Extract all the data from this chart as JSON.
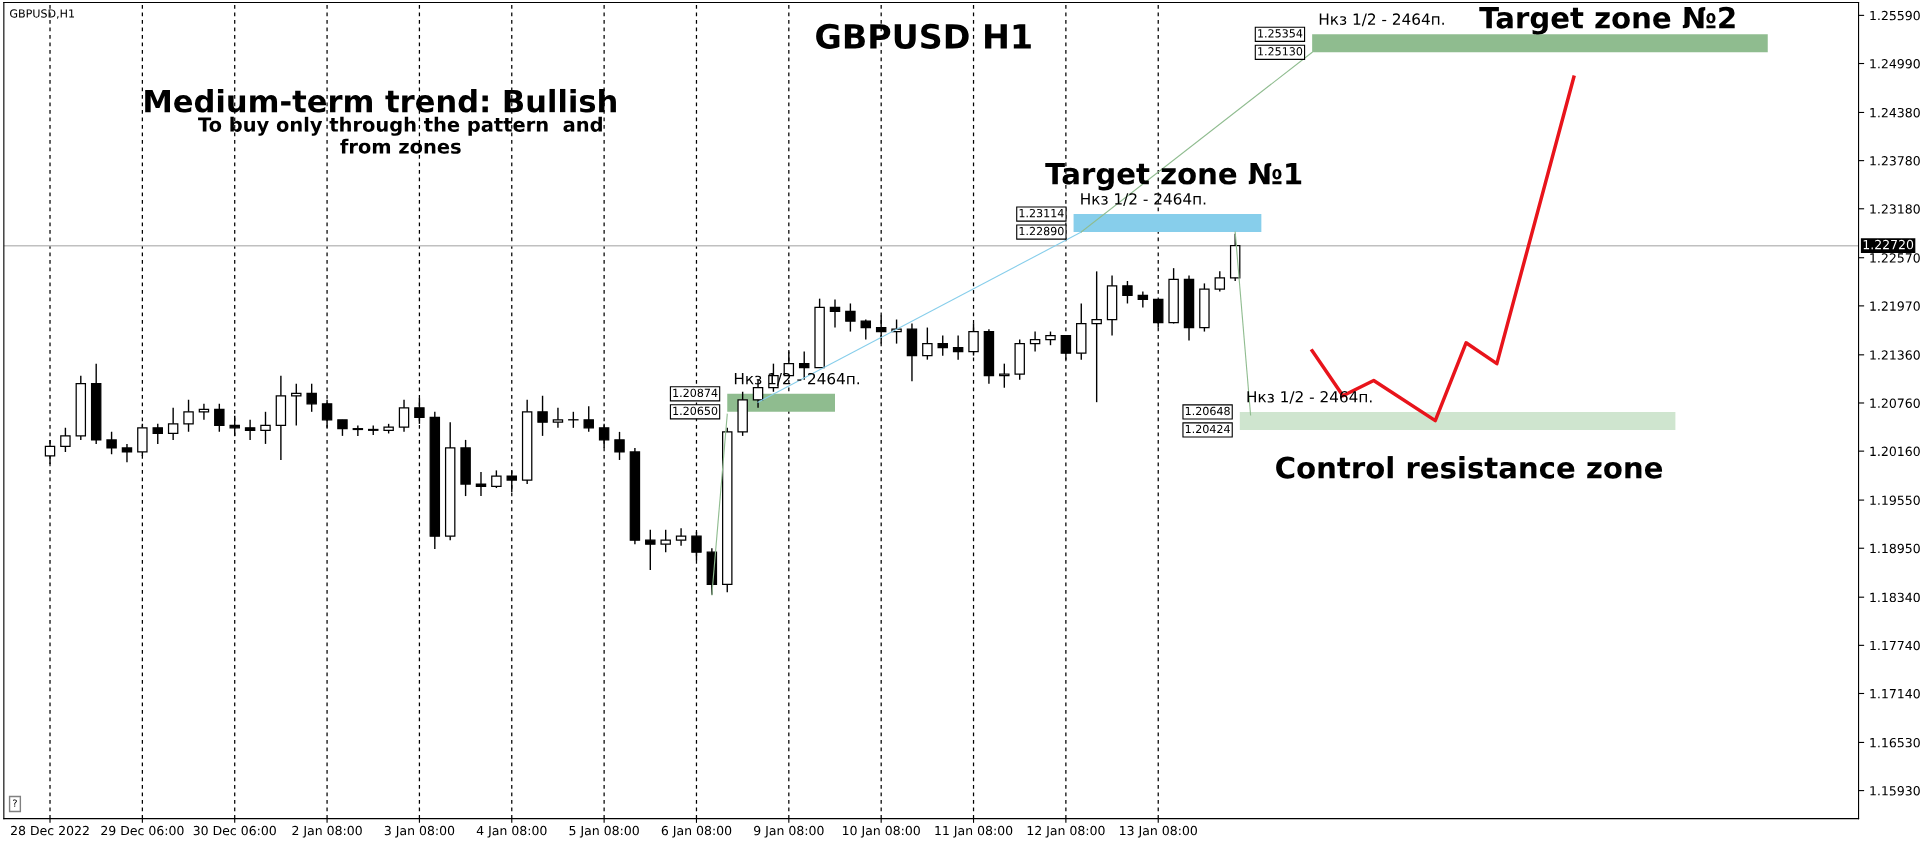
{
  "chart_data": {
    "type": "candlestick",
    "title": "GBPUSD H1",
    "categories": [
      "28 Dec 2022",
      null,
      null,
      null,
      null,
      null,
      "29 Dec 06:00",
      null,
      null,
      null,
      null,
      null,
      "30 Dec 06:00",
      null,
      null,
      null,
      null,
      null,
      "2 Jan 08:00",
      null,
      null,
      null,
      null,
      null,
      "3 Jan 08:00",
      null,
      null,
      null,
      null,
      null,
      "4 Jan 08:00",
      null,
      null,
      null,
      null,
      null,
      "5 Jan 08:00",
      null,
      null,
      null,
      null,
      null,
      "6 Jan 08:00",
      null,
      null,
      null,
      null,
      null,
      "9 Jan 08:00",
      null,
      null,
      null,
      null,
      null,
      "10 Jan 08:00",
      null,
      null,
      null,
      null,
      null,
      "11 Jan 08:00",
      null,
      null,
      null,
      null,
      null,
      "12 Jan 08:00",
      null,
      null,
      null,
      null,
      null,
      "13 Jan 08:00",
      null,
      null,
      null,
      null,
      null,
      null,
      null,
      null,
      null,
      null,
      null,
      null,
      null,
      null,
      null,
      null,
      null,
      null,
      null,
      null,
      null,
      null,
      null,
      null,
      null,
      null,
      null,
      null,
      null,
      null,
      null,
      null,
      null,
      null,
      null,
      null,
      null,
      null,
      null,
      null,
      null,
      null,
      null,
      null,
      null
    ],
    "ohlc": [
      [
        1.201,
        1.203,
        1.2,
        1.2022
      ],
      [
        1.2022,
        1.2045,
        1.2015,
        1.2035
      ],
      [
        1.2035,
        1.211,
        1.203,
        1.21
      ],
      [
        1.21,
        1.2125,
        1.2025,
        1.203
      ],
      [
        1.203,
        1.204,
        1.2012,
        1.202
      ],
      [
        1.202,
        1.2025,
        1.2002,
        1.2015
      ],
      [
        1.2015,
        1.205,
        1.201,
        1.2045
      ],
      [
        1.2045,
        1.205,
        1.2025,
        1.2038
      ],
      [
        1.2038,
        1.207,
        1.203,
        1.205
      ],
      [
        1.205,
        1.208,
        1.204,
        1.2065
      ],
      [
        1.2065,
        1.2075,
        1.2055,
        1.2068
      ],
      [
        1.2068,
        1.2075,
        1.204,
        1.2048
      ],
      [
        1.2048,
        1.206,
        1.2035,
        1.2045
      ],
      [
        1.2045,
        1.2055,
        1.203,
        1.2042
      ],
      [
        1.2042,
        1.2065,
        1.2025,
        1.2048
      ],
      [
        1.2048,
        1.211,
        1.2005,
        1.2085
      ],
      [
        1.2085,
        1.21,
        1.2048,
        1.2088
      ],
      [
        1.2088,
        1.21,
        1.2065,
        1.2075
      ],
      [
        1.2075,
        1.208,
        1.2045,
        1.2055
      ],
      [
        1.2055,
        1.2055,
        1.2035,
        1.2044
      ],
      [
        1.2044,
        1.2048,
        1.2035,
        1.2043
      ],
      [
        1.2043,
        1.2048,
        1.2036,
        1.2042
      ],
      [
        1.2042,
        1.205,
        1.2038,
        1.2046
      ],
      [
        1.2046,
        1.208,
        1.204,
        1.207
      ],
      [
        1.207,
        1.2082,
        1.205,
        1.2058
      ],
      [
        1.2058,
        1.2065,
        1.1894,
        1.191
      ],
      [
        1.191,
        1.2052,
        1.1905,
        1.202
      ],
      [
        1.202,
        1.203,
        1.196,
        1.1975
      ],
      [
        1.1975,
        1.199,
        1.196,
        1.1972
      ],
      [
        1.1972,
        1.1992,
        1.197,
        1.1985
      ],
      [
        1.1985,
        1.1992,
        1.1965,
        1.198
      ],
      [
        1.198,
        1.208,
        1.1975,
        1.2065
      ],
      [
        1.2065,
        1.2085,
        1.2035,
        1.2052
      ],
      [
        1.2052,
        1.207,
        1.2045,
        1.2055
      ],
      [
        1.2055,
        1.2065,
        1.2045,
        1.2055
      ],
      [
        1.2055,
        1.2072,
        1.204,
        1.2045
      ],
      [
        1.2045,
        1.205,
        1.202,
        1.203
      ],
      [
        1.203,
        1.204,
        1.2005,
        1.2015
      ],
      [
        1.2015,
        1.202,
        1.19,
        1.1905
      ],
      [
        1.1905,
        1.1918,
        1.1868,
        1.19
      ],
      [
        1.19,
        1.1918,
        1.189,
        1.1905
      ],
      [
        1.1905,
        1.192,
        1.1898,
        1.191
      ],
      [
        1.191,
        1.1915,
        1.188,
        1.189
      ],
      [
        1.189,
        1.1895,
        1.1837,
        1.185
      ],
      [
        1.185,
        1.2045,
        1.184,
        1.204
      ],
      [
        1.204,
        1.209,
        1.2035,
        1.208
      ],
      [
        1.208,
        1.2105,
        1.207,
        1.2095
      ],
      [
        1.2095,
        1.2125,
        1.209,
        1.211
      ],
      [
        1.211,
        1.214,
        1.211,
        1.2125
      ],
      [
        1.2125,
        1.214,
        1.2105,
        1.212
      ],
      [
        1.212,
        1.2206,
        1.212,
        1.2195
      ],
      [
        1.2195,
        1.2205,
        1.217,
        1.219
      ],
      [
        1.219,
        1.22,
        1.2165,
        1.2178
      ],
      [
        1.2178,
        1.218,
        1.2155,
        1.217
      ],
      [
        1.217,
        1.2185,
        1.215,
        1.2165
      ],
      [
        1.2165,
        1.218,
        1.215,
        1.2168
      ],
      [
        1.2168,
        1.2175,
        1.2103,
        1.2135
      ],
      [
        1.2135,
        1.217,
        1.213,
        1.215
      ],
      [
        1.215,
        1.216,
        1.2135,
        1.2145
      ],
      [
        1.2145,
        1.216,
        1.213,
        1.214
      ],
      [
        1.214,
        1.2175,
        1.2135,
        1.2165
      ],
      [
        1.2165,
        1.2168,
        1.21,
        1.211
      ],
      [
        1.211,
        1.2125,
        1.2095,
        1.2112
      ],
      [
        1.2112,
        1.2155,
        1.2105,
        1.215
      ],
      [
        1.215,
        1.2165,
        1.214,
        1.2155
      ],
      [
        1.2155,
        1.2165,
        1.2148,
        1.216
      ],
      [
        1.216,
        1.216,
        1.213,
        1.2138
      ],
      [
        1.2138,
        1.22,
        1.213,
        1.2175
      ],
      [
        1.2175,
        1.224,
        1.2077,
        1.218
      ],
      [
        1.218,
        1.2235,
        1.216,
        1.2222
      ],
      [
        1.2222,
        1.2228,
        1.22,
        1.221
      ],
      [
        1.221,
        1.2215,
        1.2195,
        1.2205
      ],
      [
        1.2205,
        1.2205,
        1.217,
        1.2176
      ],
      [
        1.2176,
        1.2244,
        1.2175,
        1.223
      ],
      [
        1.223,
        1.2235,
        1.2154,
        1.217
      ],
      [
        1.217,
        1.2225,
        1.2165,
        1.2218
      ],
      [
        1.2218,
        1.224,
        1.2215,
        1.2232
      ],
      [
        1.2232,
        1.2287,
        1.2228,
        1.2272
      ],
      null,
      null,
      null,
      null,
      null,
      null,
      null,
      null,
      null,
      null,
      null,
      null,
      null,
      null,
      null,
      null,
      null,
      null,
      null,
      null,
      null,
      null,
      null,
      null,
      null,
      null,
      null,
      null,
      null,
      null,
      null,
      null,
      null,
      null,
      null,
      null,
      null,
      null,
      null,
      null
    ],
    "series": [
      {
        "type": "line",
        "color": "#e8141b",
        "values": [
          null,
          null,
          null,
          null,
          null,
          null,
          null,
          null,
          null,
          null,
          null,
          null,
          null,
          null,
          null,
          null,
          null,
          null,
          null,
          null,
          null,
          null,
          null,
          null,
          null,
          null,
          null,
          null,
          null,
          null,
          null,
          null,
          null,
          null,
          null,
          null,
          null,
          null,
          null,
          null,
          null,
          null,
          null,
          null,
          null,
          null,
          null,
          null,
          null,
          null,
          null,
          null,
          null,
          null,
          null,
          null,
          null,
          null,
          null,
          null,
          null,
          null,
          null,
          null,
          null,
          null,
          null,
          null,
          null,
          null,
          null,
          null,
          null,
          null,
          null,
          null,
          null,
          null,
          null,
          null,
          null,
          null,
          1.2141,
          null,
          1.2085,
          null,
          1.2104,
          null,
          null,
          null,
          1.2054,
          null,
          1.2151,
          null,
          1.2125,
          null,
          null,
          null,
          null,
          1.2482,
          null,
          null,
          null,
          null,
          null,
          null,
          null,
          null,
          null,
          null,
          null,
          null,
          null,
          null,
          null,
          null,
          null,
          null
        ]
      },
      {
        "type": "line",
        "color": "#87ceeb",
        "values": [
          null,
          null,
          null,
          null,
          null,
          null,
          null,
          null,
          null,
          null,
          null,
          null,
          null,
          null,
          null,
          null,
          null,
          null,
          null,
          null,
          null,
          null,
          null,
          null,
          null,
          null,
          null,
          null,
          null,
          null,
          null,
          null,
          null,
          null,
          null,
          null,
          null,
          null,
          null,
          null,
          null,
          null,
          null,
          null,
          null,
          null,
          1.2077,
          null,
          null,
          null,
          null,
          null,
          null,
          null,
          null,
          null,
          null,
          null,
          null,
          null,
          null,
          null,
          null,
          null,
          null,
          null,
          null,
          1.2289,
          null,
          null,
          null,
          null,
          null,
          null,
          null,
          null,
          null,
          null,
          null,
          null,
          null,
          null,
          null,
          null,
          null,
          null,
          null,
          null,
          null,
          null,
          null,
          null,
          null,
          null,
          null,
          null,
          null,
          null,
          null,
          null,
          null,
          null,
          null,
          null,
          null,
          null,
          null,
          null,
          null,
          null,
          null,
          null,
          null,
          null,
          null,
          null,
          null,
          null
        ]
      },
      {
        "type": "line",
        "color": "#8fbc8f",
        "values": [
          null,
          null,
          null,
          null,
          null,
          null,
          null,
          null,
          null,
          null,
          null,
          null,
          null,
          null,
          null,
          null,
          null,
          null,
          null,
          null,
          null,
          null,
          null,
          null,
          null,
          null,
          null,
          null,
          null,
          null,
          null,
          null,
          null,
          null,
          null,
          null,
          null,
          null,
          null,
          null,
          null,
          null,
          null,
          null,
          null,
          null,
          null,
          null,
          null,
          null,
          null,
          null,
          null,
          null,
          null,
          null,
          null,
          null,
          null,
          null,
          null,
          null,
          null,
          null,
          null,
          null,
          null,
          1.2289,
          null,
          null,
          null,
          null,
          null,
          null,
          null,
          null,
          null,
          null,
          null,
          null,
          null,
          null,
          1.2513,
          null,
          null,
          null,
          null,
          null,
          null,
          null,
          null,
          null,
          null,
          null,
          null,
          null,
          null,
          null,
          null,
          null,
          null,
          null,
          null,
          null,
          null,
          null,
          null,
          null,
          null,
          null,
          null,
          null,
          null,
          null,
          null,
          null,
          null,
          null
        ]
      },
      {
        "type": "line",
        "color": "#8fbc8f",
        "values": [
          null,
          null,
          null,
          null,
          null,
          null,
          null,
          null,
          null,
          null,
          null,
          null,
          null,
          null,
          null,
          null,
          null,
          null,
          null,
          null,
          null,
          null,
          null,
          null,
          null,
          null,
          null,
          null,
          null,
          null,
          null,
          null,
          null,
          null,
          null,
          null,
          null,
          null,
          null,
          null,
          null,
          null,
          null,
          1.1837,
          1.2062,
          null,
          null,
          null,
          null,
          null,
          null,
          null,
          null,
          null,
          null,
          null,
          null,
          null,
          null,
          null,
          null,
          null,
          null,
          null,
          null,
          null,
          null,
          null,
          null,
          null,
          null,
          null,
          null,
          null,
          null,
          null,
          null,
          null,
          null,
          null,
          null,
          null,
          null,
          null,
          null,
          null,
          null,
          null,
          null,
          null,
          null,
          null,
          null,
          null,
          null,
          null,
          null,
          null,
          null,
          null,
          null,
          null,
          null,
          null,
          null,
          null,
          null,
          null,
          null,
          null,
          null,
          null,
          null,
          null,
          null,
          null,
          null,
          null
        ]
      },
      {
        "type": "line",
        "color": "#8fbc8f",
        "values": [
          null,
          null,
          null,
          null,
          null,
          null,
          null,
          null,
          null,
          null,
          null,
          null,
          null,
          null,
          null,
          null,
          null,
          null,
          null,
          null,
          null,
          null,
          null,
          null,
          null,
          null,
          null,
          null,
          null,
          null,
          null,
          null,
          null,
          null,
          null,
          null,
          null,
          null,
          null,
          null,
          null,
          null,
          null,
          null,
          null,
          null,
          null,
          null,
          null,
          null,
          null,
          null,
          null,
          null,
          null,
          null,
          null,
          null,
          null,
          null,
          null,
          null,
          null,
          null,
          null,
          null,
          null,
          null,
          null,
          null,
          null,
          null,
          null,
          null,
          null,
          null,
          null,
          1.2289,
          1.2061,
          null,
          null,
          null,
          null,
          null,
          null,
          null,
          null,
          null,
          null,
          null,
          null,
          null,
          null,
          null,
          null,
          null,
          null,
          null,
          null,
          null,
          null,
          null,
          null,
          null,
          null,
          null,
          null,
          null,
          null,
          null,
          null,
          null,
          null,
          null,
          null,
          null,
          null,
          null
        ]
      }
    ],
    "ylim": [
      1.1558,
      1.2575
    ],
    "yticks": [
      {
        "value": 1.2559,
        "label": "1.25590"
      },
      {
        "value": 1.2499,
        "label": "1.24990"
      },
      {
        "value": 1.2438,
        "label": "1.24380"
      },
      {
        "value": 1.2378,
        "label": "1.23780"
      },
      {
        "value": 1.2318,
        "label": "1.23180"
      },
      {
        "value": 1.2257,
        "label": "1.22570"
      },
      {
        "value": 1.2197,
        "label": "1.21970"
      },
      {
        "value": 1.2136,
        "label": "1.21360"
      },
      {
        "value": 1.2076,
        "label": "1.20760"
      },
      {
        "value": 1.2016,
        "label": "1.20160"
      },
      {
        "value": 1.1955,
        "label": "1.19550"
      },
      {
        "value": 1.1895,
        "label": "1.18950"
      },
      {
        "value": 1.1834,
        "label": "1.18340"
      },
      {
        "value": 1.1774,
        "label": "1.17740"
      },
      {
        "value": 1.1714,
        "label": "1.17140"
      },
      {
        "value": 1.1653,
        "label": "1.16530"
      },
      {
        "value": 1.1593,
        "label": "1.15930"
      }
    ],
    "grid": "x",
    "ref_lines": [
      {
        "axis": "y",
        "value": 1.2272,
        "label": "1.22720",
        "color": "#c0c0c0"
      }
    ],
    "bands": [
      {
        "axis": "y",
        "from": 1.2513,
        "to": 1.25354,
        "label": "Нкз 1/2 - 2464п.",
        "color": "#8fbc8f"
      },
      {
        "axis": "y",
        "from": 1.2289,
        "to": 1.23114,
        "label": "Нкз 1/2 - 2464п.",
        "color": "#87ceeb"
      },
      {
        "axis": "y",
        "from": 1.2065,
        "to": 1.20874,
        "label": "Нкз 1/2 - 2464п.",
        "color": "#8fbc8f"
      },
      {
        "axis": "y",
        "from": 1.20424,
        "to": 1.20648,
        "label": "Нкз 1/2 - 2464п.",
        "color": "#cfe5cf"
      }
    ],
    "annotations": [
      "GBPUSD,H1",
      "Medium-term trend: Bullish",
      "To buy only through the pattern  and\nfrom zones",
      "Target zone №1",
      "Target zone №2",
      "Control resistance zone",
      "?",
      "1.25354",
      "1.25130",
      "1.23114",
      "1.22890",
      "1.20874",
      "1.20650",
      "1.20648",
      "1.20424"
    ]
  }
}
